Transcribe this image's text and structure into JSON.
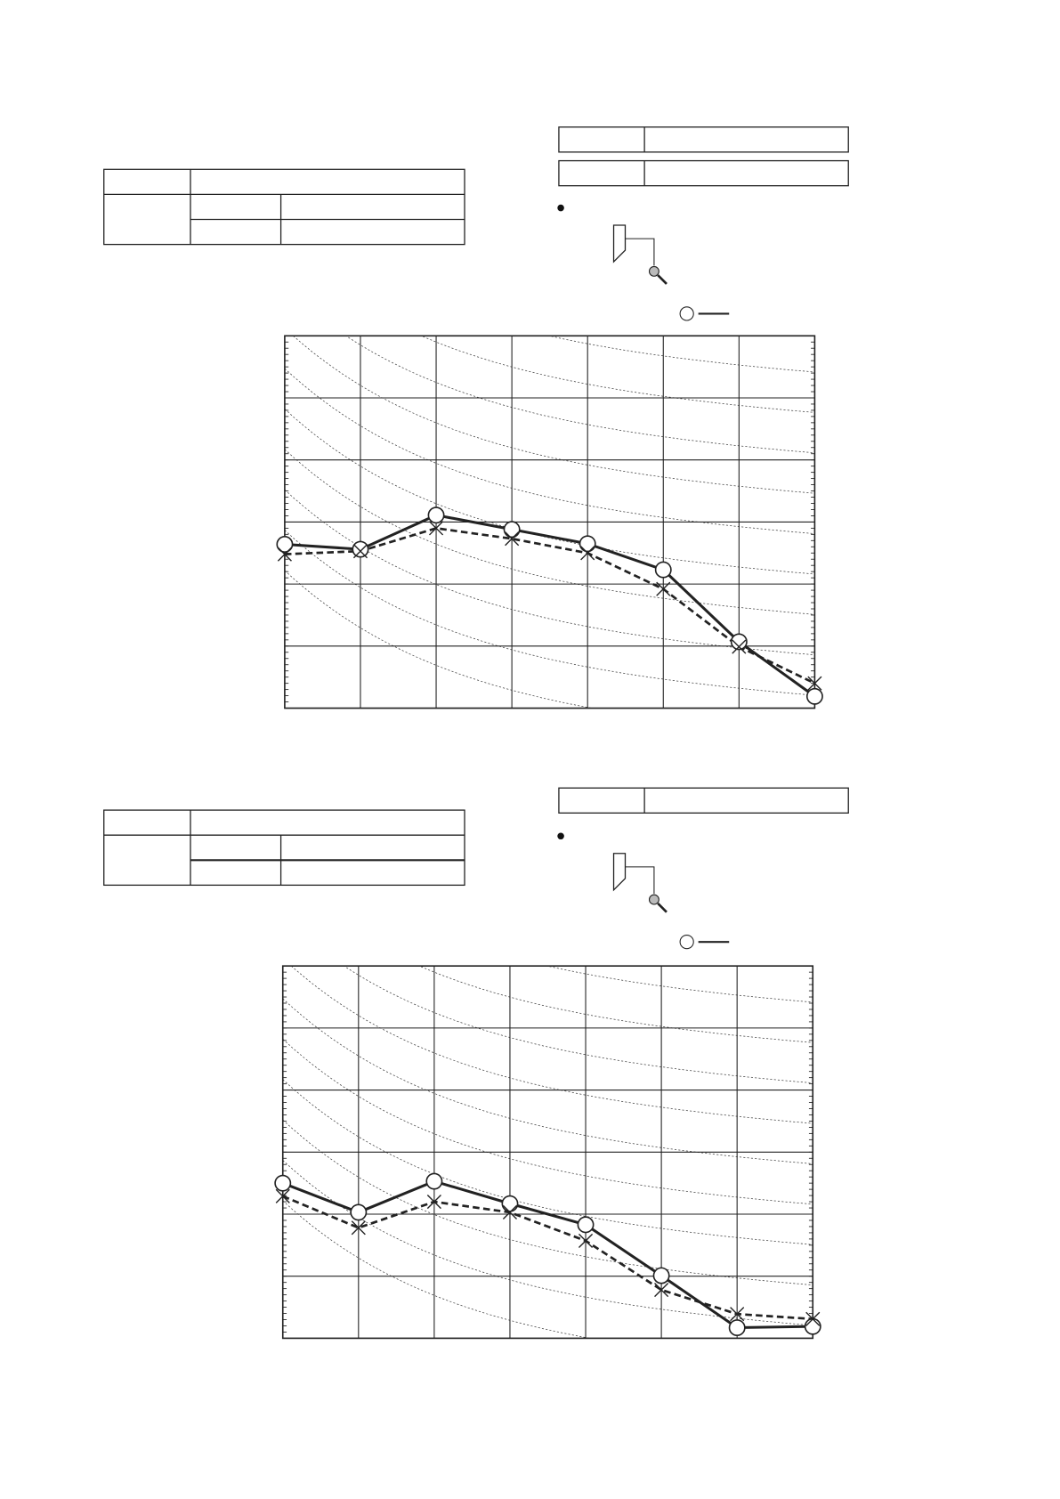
{
  "chart_data": [
    {
      "type": "line",
      "categories": [
        null,
        null,
        null,
        null,
        null,
        null,
        null,
        null
      ],
      "ylim": [
        0,
        6
      ],
      "yticks": [
        0,
        1,
        2,
        3,
        4,
        5,
        6
      ],
      "grid": true,
      "series": [
        {
          "color": "#222222",
          "line_style": "solid",
          "marker": "circle",
          "values": [
            2.64,
            2.56,
            3.11,
            2.88,
            2.65,
            2.23,
            1.07,
            0.19
          ]
        },
        {
          "color": "#222222",
          "line_style": "dashed",
          "marker": "x",
          "values": [
            2.48,
            2.53,
            2.9,
            2.73,
            2.5,
            1.92,
            0.99,
            0.4
          ]
        }
      ]
    },
    {
      "type": "line",
      "categories": [
        null,
        null,
        null,
        null,
        null,
        null,
        null,
        null
      ],
      "ylim": [
        0,
        6
      ],
      "yticks": [
        0,
        1,
        2,
        3,
        4,
        5,
        6
      ],
      "grid": true,
      "series": [
        {
          "color": "#222222",
          "line_style": "solid",
          "marker": "circle",
          "values": [
            2.5,
            2.03,
            2.53,
            2.17,
            1.83,
            1.01,
            0.17,
            0.19
          ]
        },
        {
          "color": "#222222",
          "line_style": "dashed",
          "marker": "x",
          "values": [
            2.29,
            1.78,
            2.2,
            2.03,
            1.57,
            0.78,
            0.39,
            0.31
          ]
        }
      ]
    }
  ]
}
